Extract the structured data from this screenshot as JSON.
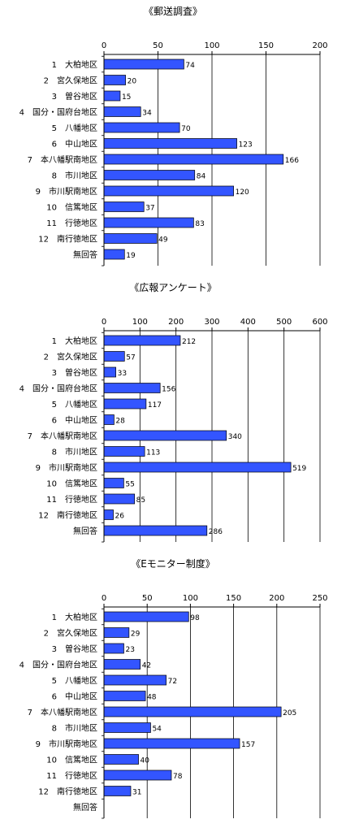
{
  "chart_data": [
    {
      "type": "bar",
      "orientation": "horizontal",
      "title": "《郵送調査》",
      "categories": [
        "1　大柏地区",
        "2　宮久保地区",
        "3　曽谷地区",
        "4　国分・国府台地区",
        "5　八幡地区",
        "6　中山地区",
        "7　本八幡駅南地区",
        "8　市川地区",
        "9　市川駅南地区",
        "10　信篤地区",
        "11　行徳地区",
        "12　南行徳地区",
        "無回答"
      ],
      "values": [
        74,
        20,
        15,
        34,
        70,
        123,
        166,
        84,
        120,
        37,
        83,
        49,
        19
      ],
      "xlim": [
        0,
        200
      ],
      "ticks": [
        0,
        50,
        100,
        150,
        200
      ],
      "grid": true,
      "bar_color": "#3355ff"
    },
    {
      "type": "bar",
      "orientation": "horizontal",
      "title": "《広報アンケート》",
      "categories": [
        "1　大柏地区",
        "2　宮久保地区",
        "3　曽谷地区",
        "4　国分・国府台地区",
        "5　八幡地区",
        "6　中山地区",
        "7　本八幡駅南地区",
        "8　市川地区",
        "9　市川駅南地区",
        "10　信篤地区",
        "11　行徳地区",
        "12　南行徳地区",
        "無回答"
      ],
      "values": [
        212,
        57,
        33,
        156,
        117,
        28,
        340,
        113,
        519,
        55,
        85,
        26,
        286
      ],
      "xlim": [
        0,
        600
      ],
      "ticks": [
        0,
        100,
        200,
        300,
        400,
        500,
        600
      ],
      "grid": true,
      "bar_color": "#3355ff"
    },
    {
      "type": "bar",
      "orientation": "horizontal",
      "title": "《Eモニター制度》",
      "categories": [
        "1　大柏地区",
        "2　宮久保地区",
        "3　曽谷地区",
        "4　国分・国府台地区",
        "5　八幡地区",
        "6　中山地区",
        "7　本八幡駅南地区",
        "8　市川地区",
        "9　市川駅南地区",
        "10　信篤地区",
        "11　行徳地区",
        "12　南行徳地区",
        "無回答"
      ],
      "values": [
        98,
        29,
        23,
        42,
        72,
        48,
        205,
        54,
        157,
        40,
        78,
        31,
        null
      ],
      "xlim": [
        0,
        250
      ],
      "ticks": [
        0,
        50,
        100,
        150,
        200,
        250
      ],
      "grid": true,
      "bar_color": "#3355ff"
    }
  ]
}
